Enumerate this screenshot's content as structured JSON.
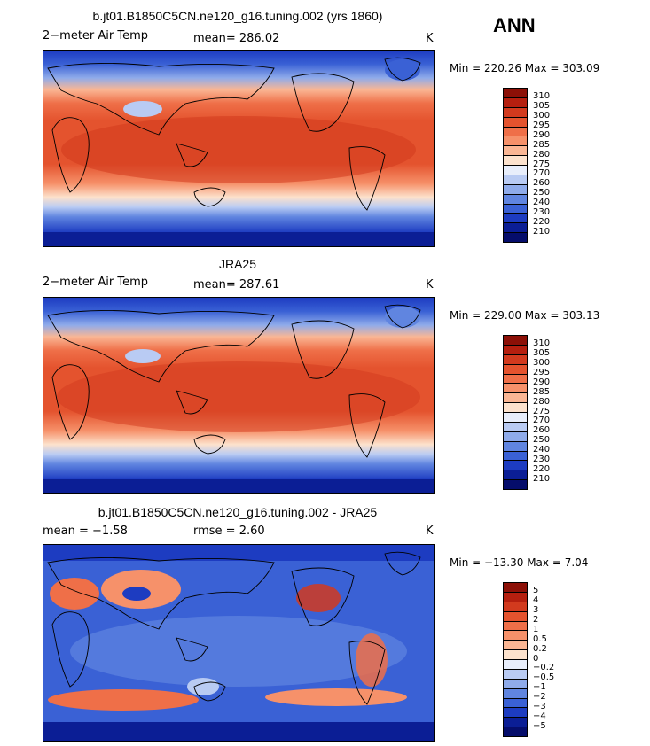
{
  "overall_title": "ANN",
  "unit": "K",
  "panels": [
    {
      "title": "b.jt01.B1850C5CN.ne120_g16.tuning.002 (yrs 1860)",
      "left_label": "2−meter Air Temp",
      "mid_label": "mean=  286.02",
      "right_label": "K",
      "minmax": "Min = 220.26 Max = 303.09",
      "colorbar": {
        "ticks": [
          "310",
          "305",
          "300",
          "295",
          "290",
          "285",
          "280",
          "275",
          "270",
          "260",
          "250",
          "240",
          "230",
          "220",
          "210"
        ],
        "colors": [
          "#8c1007",
          "#b51f0f",
          "#d23a1e",
          "#e4532e",
          "#ef6f48",
          "#f6916a",
          "#fab694",
          "#fce2cd",
          "#e8eefb",
          "#b9cbf3",
          "#8fabea",
          "#6085e0",
          "#3a61d5",
          "#1d3cc1",
          "#0b1e95",
          "#050d6b"
        ]
      },
      "map_style": "model"
    },
    {
      "title": "JRA25",
      "left_label": "2−meter Air Temp",
      "mid_label": "mean=  287.61",
      "right_label": "K",
      "minmax": "Min = 229.00 Max = 303.13",
      "colorbar": {
        "ticks": [
          "310",
          "305",
          "300",
          "295",
          "290",
          "285",
          "280",
          "275",
          "270",
          "260",
          "250",
          "240",
          "230",
          "220",
          "210"
        ],
        "colors": [
          "#8c1007",
          "#b51f0f",
          "#d23a1e",
          "#e4532e",
          "#ef6f48",
          "#f6916a",
          "#fab694",
          "#fce2cd",
          "#e8eefb",
          "#b9cbf3",
          "#8fabea",
          "#6085e0",
          "#3a61d5",
          "#1d3cc1",
          "#0b1e95",
          "#050d6b"
        ]
      },
      "map_style": "obs"
    },
    {
      "title": "b.jt01.B1850C5CN.ne120_g16.tuning.002 - JRA25",
      "left_label": "mean =   −1.58",
      "mid_label": "rmse =    2.60",
      "right_label": "K",
      "minmax": "Min = −13.30 Max =    7.04",
      "colorbar": {
        "ticks": [
          "5",
          "4",
          "3",
          "2",
          "1",
          "0.5",
          "0.2",
          "0",
          "−0.2",
          "−0.5",
          "−1",
          "−2",
          "−3",
          "−4",
          "−5"
        ],
        "colors": [
          "#8c1007",
          "#b51f0f",
          "#d23a1e",
          "#e4532e",
          "#ef6f48",
          "#f6916a",
          "#fab694",
          "#fce2cd",
          "#e8eefb",
          "#b9cbf3",
          "#8fabea",
          "#6085e0",
          "#3a61d5",
          "#1d3cc1",
          "#0b1e95",
          "#050d6b"
        ]
      },
      "map_style": "diff"
    }
  ]
}
